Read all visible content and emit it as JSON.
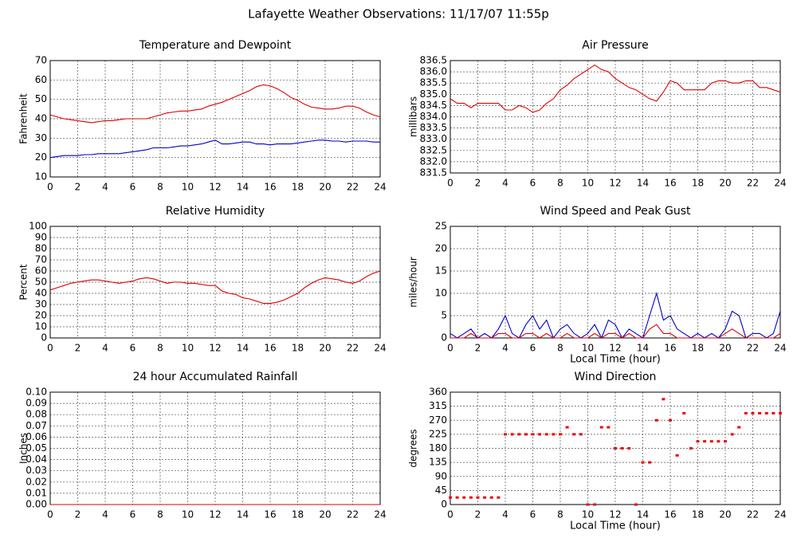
{
  "title": "Lafayette Weather Observations: 11/17/07 11:55p",
  "chart_data": [
    {
      "type": "line",
      "title": "Temperature and Dewpoint",
      "ylabel": "Fahrenheit",
      "x": [
        0,
        0.5,
        1,
        1.5,
        2,
        2.5,
        3,
        3.5,
        4,
        4.5,
        5,
        5.5,
        6,
        6.5,
        7,
        7.5,
        8,
        8.5,
        9,
        9.5,
        10,
        10.5,
        11,
        11.5,
        12,
        12.5,
        13,
        13.5,
        14,
        14.5,
        15,
        15.5,
        16,
        16.5,
        17,
        17.5,
        18,
        18.5,
        19,
        19.5,
        20,
        20.5,
        21,
        21.5,
        22,
        22.5,
        23,
        23.5,
        24
      ],
      "series": [
        {
          "color": "#dd0000",
          "values": [
            42,
            41,
            40,
            39.5,
            39,
            38.5,
            38,
            38.5,
            39,
            39,
            39.5,
            40,
            40,
            40,
            40,
            41,
            42,
            43,
            43.5,
            44,
            44,
            44.5,
            45,
            46.5,
            47.5,
            48.5,
            50,
            51.5,
            53,
            54.5,
            56.5,
            57.5,
            57,
            55.5,
            53.5,
            51,
            49.5,
            47.5,
            46,
            45.5,
            45,
            45,
            45.5,
            46.5,
            46.5,
            45.5,
            43.5,
            42,
            41
          ]
        },
        {
          "color": "#0000cc",
          "values": [
            20,
            20.5,
            21,
            21,
            21,
            21.5,
            21.5,
            22,
            22,
            22,
            22,
            22.5,
            23,
            23.5,
            24,
            25,
            25,
            25,
            25.5,
            26,
            26,
            26.5,
            27,
            28,
            29,
            27,
            27,
            27.5,
            28,
            28,
            27,
            27,
            26.5,
            27,
            27,
            27,
            27.5,
            28,
            28.5,
            29,
            29,
            28.5,
            28.5,
            28,
            28.5,
            28.5,
            28.5,
            28,
            28
          ]
        }
      ],
      "xlim": [
        0,
        24
      ],
      "xticks": [
        0,
        2,
        4,
        6,
        8,
        10,
        12,
        14,
        16,
        18,
        20,
        22,
        24
      ],
      "ylim": [
        10,
        70
      ],
      "yticks": [
        10,
        20,
        30,
        40,
        50,
        60,
        70
      ],
      "grid": true
    },
    {
      "type": "line",
      "title": "Air Pressure",
      "ylabel": "millibars",
      "x": [
        0,
        0.5,
        1,
        1.5,
        2,
        2.5,
        3,
        3.5,
        4,
        4.5,
        5,
        5.5,
        6,
        6.5,
        7,
        7.5,
        8,
        8.5,
        9,
        9.5,
        10,
        10.5,
        11,
        11.5,
        12,
        12.5,
        13,
        13.5,
        14,
        14.5,
        15,
        15.5,
        16,
        16.5,
        17,
        17.5,
        18,
        18.5,
        19,
        19.5,
        20,
        20.5,
        21,
        21.5,
        22,
        22.5,
        23,
        23.5,
        24
      ],
      "series": [
        {
          "color": "#dd0000",
          "values": [
            834.8,
            834.6,
            834.6,
            834.4,
            834.6,
            834.6,
            834.6,
            834.6,
            834.3,
            834.3,
            834.5,
            834.4,
            834.2,
            834.3,
            834.6,
            834.8,
            835.2,
            835.4,
            835.7,
            835.9,
            836.1,
            836.3,
            836.1,
            836.0,
            835.7,
            835.5,
            835.3,
            835.2,
            835.0,
            834.8,
            834.7,
            835.1,
            835.6,
            835.5,
            835.2,
            835.2,
            835.2,
            835.2,
            835.5,
            835.6,
            835.6,
            835.5,
            835.5,
            835.6,
            835.6,
            835.3,
            835.3,
            835.2,
            835.1
          ]
        }
      ],
      "xlim": [
        0,
        24
      ],
      "xticks": [
        0,
        2,
        4,
        6,
        8,
        10,
        12,
        14,
        16,
        18,
        20,
        22,
        24
      ],
      "ylim": [
        831.5,
        836.5
      ],
      "yticks": [
        831.5,
        {
          "value": 832,
          "label": "832.0"
        },
        832.5,
        {
          "value": 833,
          "label": "833.0"
        },
        833.5,
        {
          "value": 834,
          "label": "834.0"
        },
        834.5,
        {
          "value": 835,
          "label": "835.0"
        },
        835.5,
        {
          "value": 836,
          "label": "836.0"
        },
        836.5
      ],
      "grid": true
    },
    {
      "type": "line",
      "title": "Relative Humidity",
      "ylabel": "Percent",
      "x": [
        0,
        0.5,
        1,
        1.5,
        2,
        2.5,
        3,
        3.5,
        4,
        4.5,
        5,
        5.5,
        6,
        6.5,
        7,
        7.5,
        8,
        8.5,
        9,
        9.5,
        10,
        10.5,
        11,
        11.5,
        12,
        12.5,
        13,
        13.5,
        14,
        14.5,
        15,
        15.5,
        16,
        16.5,
        17,
        17.5,
        18,
        18.5,
        19,
        19.5,
        20,
        20.5,
        21,
        21.5,
        22,
        22.5,
        23,
        23.5,
        24
      ],
      "series": [
        {
          "color": "#dd0000",
          "values": [
            43,
            45,
            47,
            49,
            50,
            51,
            52,
            52,
            51,
            50,
            49,
            50,
            51,
            53,
            54,
            53,
            51,
            49,
            50,
            50,
            49,
            49,
            48,
            47,
            47,
            42,
            40,
            39,
            36,
            35,
            33,
            31,
            31,
            32,
            34,
            37,
            40,
            45,
            49,
            52,
            54,
            53,
            52,
            50,
            49,
            51,
            55,
            58,
            60
          ]
        }
      ],
      "xlim": [
        0,
        24
      ],
      "xticks": [
        0,
        2,
        4,
        6,
        8,
        10,
        12,
        14,
        16,
        18,
        20,
        22,
        24
      ],
      "ylim": [
        0,
        100
      ],
      "yticks": [
        0,
        10,
        20,
        30,
        40,
        50,
        60,
        70,
        80,
        90,
        100
      ],
      "grid": true
    },
    {
      "type": "line",
      "title": "Wind Speed and Peak Gust",
      "ylabel": "miles/hour",
      "xlabel": "Local Time (hour)",
      "x": [
        0,
        0.5,
        1,
        1.5,
        2,
        2.5,
        3,
        3.5,
        4,
        4.5,
        5,
        5.5,
        6,
        6.5,
        7,
        7.5,
        8,
        8.5,
        9,
        9.5,
        10,
        10.5,
        11,
        11.5,
        12,
        12.5,
        13,
        13.5,
        14,
        14.5,
        15,
        15.5,
        16,
        16.5,
        17,
        17.5,
        18,
        18.5,
        19,
        19.5,
        20,
        20.5,
        21,
        21.5,
        22,
        22.5,
        23,
        23.5,
        24
      ],
      "series": [
        {
          "color": "#0000cc",
          "values": [
            1,
            0,
            1,
            2,
            0,
            1,
            0,
            2,
            5,
            1,
            0,
            3,
            5,
            2,
            4,
            0,
            2,
            3,
            1,
            0,
            1,
            3,
            0,
            4,
            3,
            0,
            2,
            1,
            0,
            5,
            10,
            4,
            5,
            2,
            1,
            0,
            1,
            0,
            1,
            0,
            2,
            6,
            5,
            0,
            1,
            1,
            0,
            1,
            6
          ]
        },
        {
          "color": "#dd0000",
          "values": [
            0,
            0,
            0,
            1,
            0,
            0,
            0,
            1,
            1,
            0,
            0,
            1,
            1,
            0,
            1,
            0,
            0,
            1,
            0,
            0,
            0,
            1,
            0,
            1,
            1,
            0,
            1,
            0,
            0,
            2,
            3,
            1,
            1,
            0,
            0,
            0,
            0,
            0,
            0,
            0,
            1,
            2,
            1,
            0,
            0,
            0,
            0,
            0,
            1
          ]
        }
      ],
      "xlim": [
        0,
        24
      ],
      "xticks": [
        0,
        2,
        4,
        6,
        8,
        10,
        12,
        14,
        16,
        18,
        20,
        22,
        24
      ],
      "ylim": [
        0,
        25
      ],
      "yticks": [
        0,
        5,
        10,
        15,
        20,
        25
      ],
      "grid": true
    },
    {
      "type": "line",
      "title": "24 hour Accumulated Rainfall",
      "ylabel": "Inches",
      "x": [
        0,
        24
      ],
      "series": [
        {
          "color": "#dd0000",
          "values": [
            0,
            0
          ]
        }
      ],
      "xlim": [
        0,
        24
      ],
      "xticks": [
        0,
        2,
        4,
        6,
        8,
        10,
        12,
        14,
        16,
        18,
        20,
        22,
        24
      ],
      "ylim": [
        0,
        0.1
      ],
      "yticks": [
        {
          "value": 0,
          "label": "0.00"
        },
        0.01,
        0.02,
        0.03,
        0.04,
        0.05,
        0.06,
        0.07,
        0.08,
        0.09,
        {
          "value": 0.1,
          "label": "0.10"
        }
      ],
      "grid": true
    },
    {
      "type": "scatter",
      "title": "Wind Direction",
      "ylabel": "degrees",
      "xlabel": "Local Time (hour)",
      "x": [
        0,
        0.5,
        1,
        1.5,
        2,
        2.5,
        3,
        3.5,
        4,
        4.5,
        5,
        5.5,
        6,
        6.5,
        7,
        7.5,
        8,
        8.5,
        9,
        9.5,
        10,
        10.5,
        11,
        11.5,
        12,
        12.5,
        13,
        13.5,
        14,
        14.5,
        15,
        15.5,
        16,
        16.5,
        17,
        17.5,
        18,
        18.5,
        19,
        19.5,
        20,
        20.5,
        21,
        21.5,
        22,
        22.5,
        23,
        23.5,
        24
      ],
      "series": [
        {
          "color": "#ee0000",
          "values": [
            22.5,
            22.5,
            22.5,
            22.5,
            22.5,
            22.5,
            22.5,
            22.5,
            225,
            225,
            225,
            225,
            225,
            225,
            225,
            225,
            225,
            247.5,
            225,
            225,
            0,
            0,
            247.5,
            247.5,
            180,
            180,
            180,
            0,
            135,
            135,
            270,
            337.5,
            270,
            157.5,
            292.5,
            180,
            202.5,
            202.5,
            202.5,
            202.5,
            202.5,
            225,
            247.5,
            292.5,
            292.5,
            292.5,
            292.5,
            292.5,
            292.5
          ]
        }
      ],
      "xlim": [
        0,
        24
      ],
      "xticks": [
        0,
        2,
        4,
        6,
        8,
        10,
        12,
        14,
        16,
        18,
        20,
        22,
        24
      ],
      "ylim": [
        0,
        360
      ],
      "yticks": [
        0,
        45,
        90,
        135,
        180,
        225,
        270,
        315,
        360
      ],
      "grid": true
    }
  ]
}
